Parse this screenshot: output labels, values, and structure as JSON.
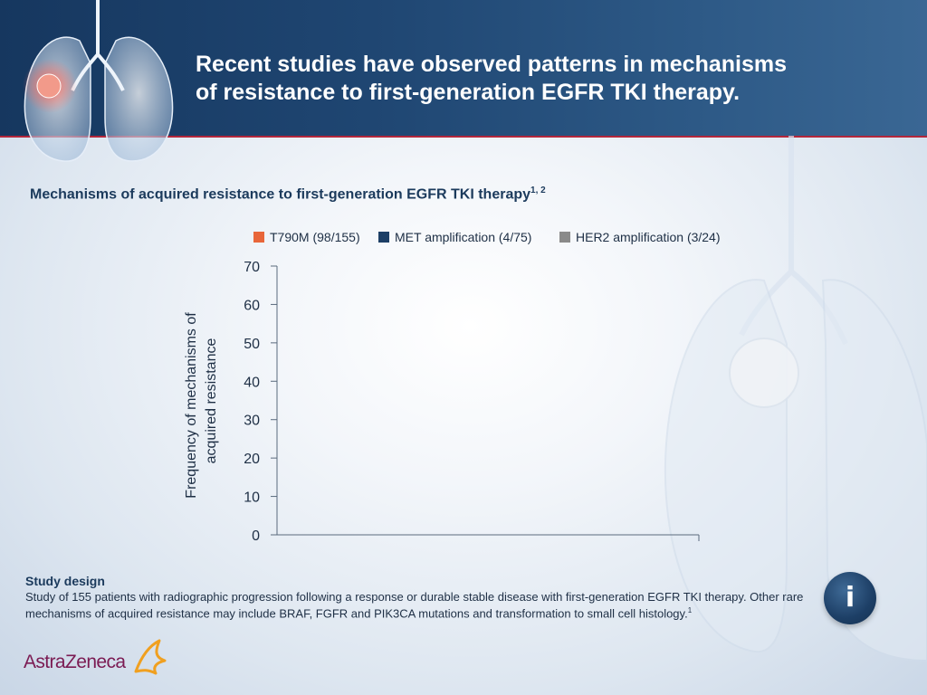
{
  "header": {
    "title_line1": "Recent studies have observed patterns in mechanisms",
    "title_line2": "of resistance to first-generation EGFR TKI therapy."
  },
  "chart_heading": {
    "text": "Mechanisms of acquired resistance to first-generation EGFR TKI therapy",
    "refs": "1, 2"
  },
  "chart_data": {
    "type": "bar",
    "title": "Mechanisms of acquired resistance to first-generation EGFR TKI therapy",
    "xlabel": "",
    "ylabel": "Frequency of mechanisms of acquired resistance",
    "ylabel_line1": "Frequency of mechanisms of",
    "ylabel_line2": "acquired resistance",
    "ylim": [
      0,
      70
    ],
    "yticks": [
      0,
      10,
      20,
      30,
      40,
      50,
      60,
      70
    ],
    "grid": false,
    "legend_position": "top",
    "series": [
      {
        "name": "T790M (98/155)",
        "color": "#e8663a",
        "values": []
      },
      {
        "name": "MET amplification (4/75)",
        "color": "#1d3f66",
        "values": []
      },
      {
        "name": "HER2 amplification (3/24)",
        "color": "#8a8a8a",
        "values": []
      }
    ]
  },
  "study": {
    "title": "Study design",
    "text": "Study of 155 patients with radiographic progression following a response or durable stable disease with first-generation EGFR TKI therapy. Other rare mechanisms of acquired resistance may include BRAF, FGFR and PIK3CA mutations and transformation to small cell histology.",
    "ref": "1"
  },
  "logo": {
    "text": "AstraZeneca"
  },
  "info_button": {
    "label": "i"
  },
  "colors": {
    "header": "#1f4672",
    "accent_line": "#b3263b",
    "heading": "#1b3a5c",
    "logo": "#7b1b53",
    "logo_mark": "#f0a020"
  },
  "icons": {
    "info": "info-icon",
    "lung": "lung-illustration-icon",
    "logo_mark": "astrazeneca-symbol-icon"
  }
}
